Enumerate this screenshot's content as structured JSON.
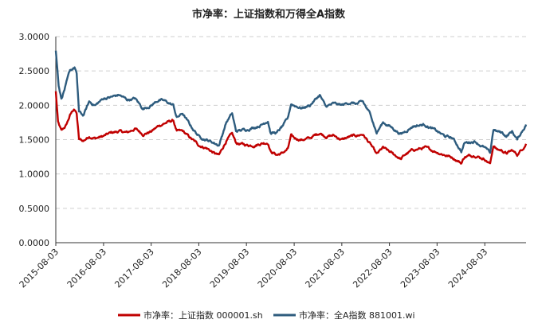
{
  "chart_data": {
    "type": "line",
    "title": "市净率：上证指数和万得全A指数",
    "xlabel": "",
    "ylabel": "",
    "ylim": [
      0,
      3
    ],
    "yticks": [
      "0.0000",
      "0.5000",
      "1.0000",
      "1.5000",
      "2.0000",
      "2.5000",
      "3.0000"
    ],
    "xticks": [
      "2015-08-03",
      "2016-08-03",
      "2017-08-03",
      "2018-08-03",
      "2019-08-03",
      "2020-08-03",
      "2021-08-03",
      "2022-08-03",
      "2023-08-03",
      "2024-08-03"
    ],
    "xlim": [
      "2015-08-03",
      "2025-06-15"
    ],
    "grid": "horizontal-dashed",
    "legend_position": "bottom",
    "series": [
      {
        "name": "市净率：上证指数 000001.sh",
        "color": "#c00000",
        "points": [
          [
            "2015-08-03",
            2.2
          ],
          [
            "2015-08-20",
            1.75
          ],
          [
            "2015-09-15",
            1.62
          ],
          [
            "2015-10-20",
            1.7
          ],
          [
            "2015-11-20",
            1.85
          ],
          [
            "2015-12-20",
            1.95
          ],
          [
            "2016-01-10",
            1.88
          ],
          [
            "2016-01-28",
            1.5
          ],
          [
            "2016-03-01",
            1.48
          ],
          [
            "2016-04-15",
            1.55
          ],
          [
            "2016-06-01",
            1.52
          ],
          [
            "2016-08-03",
            1.55
          ],
          [
            "2016-10-01",
            1.6
          ],
          [
            "2016-12-01",
            1.62
          ],
          [
            "2017-02-01",
            1.6
          ],
          [
            "2017-04-01",
            1.66
          ],
          [
            "2017-06-01",
            1.58
          ],
          [
            "2017-08-03",
            1.62
          ],
          [
            "2017-10-01",
            1.7
          ],
          [
            "2017-11-15",
            1.74
          ],
          [
            "2018-01-20",
            1.78
          ],
          [
            "2018-02-15",
            1.62
          ],
          [
            "2018-04-01",
            1.62
          ],
          [
            "2018-06-01",
            1.52
          ],
          [
            "2018-08-03",
            1.42
          ],
          [
            "2018-10-01",
            1.38
          ],
          [
            "2018-12-01",
            1.3
          ],
          [
            "2019-01-05",
            1.27
          ],
          [
            "2019-03-01",
            1.48
          ],
          [
            "2019-04-15",
            1.58
          ],
          [
            "2019-05-15",
            1.45
          ],
          [
            "2019-08-03",
            1.42
          ],
          [
            "2019-10-01",
            1.42
          ],
          [
            "2019-12-01",
            1.45
          ],
          [
            "2020-01-15",
            1.46
          ],
          [
            "2020-02-05",
            1.33
          ],
          [
            "2020-03-23",
            1.28
          ],
          [
            "2020-05-01",
            1.3
          ],
          [
            "2020-06-15",
            1.36
          ],
          [
            "2020-07-10",
            1.55
          ],
          [
            "2020-08-03",
            1.52
          ],
          [
            "2020-10-01",
            1.5
          ],
          [
            "2020-12-01",
            1.52
          ],
          [
            "2021-02-15",
            1.6
          ],
          [
            "2021-04-01",
            1.55
          ],
          [
            "2021-06-01",
            1.56
          ],
          [
            "2021-08-03",
            1.5
          ],
          [
            "2021-10-01",
            1.54
          ],
          [
            "2021-12-01",
            1.56
          ],
          [
            "2022-01-10",
            1.58
          ],
          [
            "2022-03-15",
            1.42
          ],
          [
            "2022-04-27",
            1.28
          ],
          [
            "2022-06-15",
            1.38
          ],
          [
            "2022-08-03",
            1.32
          ],
          [
            "2022-10-31",
            1.22
          ],
          [
            "2022-12-01",
            1.28
          ],
          [
            "2023-02-01",
            1.35
          ],
          [
            "2023-05-01",
            1.38
          ],
          [
            "2023-08-03",
            1.32
          ],
          [
            "2023-10-01",
            1.28
          ],
          [
            "2023-12-01",
            1.24
          ],
          [
            "2024-01-20",
            1.18
          ],
          [
            "2024-02-05",
            1.16
          ],
          [
            "2024-03-01",
            1.25
          ],
          [
            "2024-05-20",
            1.28
          ],
          [
            "2024-07-01",
            1.24
          ],
          [
            "2024-08-03",
            1.22
          ],
          [
            "2024-09-13",
            1.15
          ],
          [
            "2024-10-08",
            1.42
          ],
          [
            "2024-11-01",
            1.36
          ],
          [
            "2024-12-15",
            1.34
          ],
          [
            "2025-01-15",
            1.3
          ],
          [
            "2025-03-01",
            1.34
          ],
          [
            "2025-04-08",
            1.28
          ],
          [
            "2025-05-15",
            1.36
          ],
          [
            "2025-06-15",
            1.44
          ]
        ]
      },
      {
        "name": "市净率：全A指数 881001.wi",
        "color": "#2e5c7e",
        "points": [
          [
            "2015-08-03",
            2.8
          ],
          [
            "2015-08-25",
            2.3
          ],
          [
            "2015-09-15",
            2.1
          ],
          [
            "2015-10-20",
            2.3
          ],
          [
            "2015-11-20",
            2.5
          ],
          [
            "2015-12-25",
            2.55
          ],
          [
            "2016-01-10",
            2.45
          ],
          [
            "2016-01-28",
            1.9
          ],
          [
            "2016-03-01",
            1.85
          ],
          [
            "2016-04-15",
            2.05
          ],
          [
            "2016-06-01",
            2.0
          ],
          [
            "2016-08-03",
            2.1
          ],
          [
            "2016-10-01",
            2.12
          ],
          [
            "2016-12-01",
            2.15
          ],
          [
            "2017-02-01",
            2.08
          ],
          [
            "2017-04-01",
            2.1
          ],
          [
            "2017-06-01",
            1.95
          ],
          [
            "2017-08-03",
            2.0
          ],
          [
            "2017-10-01",
            2.08
          ],
          [
            "2017-11-15",
            2.06
          ],
          [
            "2018-01-20",
            2.0
          ],
          [
            "2018-02-15",
            1.82
          ],
          [
            "2018-04-01",
            1.88
          ],
          [
            "2018-06-01",
            1.7
          ],
          [
            "2018-08-03",
            1.55
          ],
          [
            "2018-10-01",
            1.5
          ],
          [
            "2018-12-01",
            1.45
          ],
          [
            "2019-01-05",
            1.42
          ],
          [
            "2019-03-01",
            1.75
          ],
          [
            "2019-04-15",
            1.88
          ],
          [
            "2019-05-15",
            1.62
          ],
          [
            "2019-08-03",
            1.65
          ],
          [
            "2019-10-01",
            1.68
          ],
          [
            "2019-12-01",
            1.72
          ],
          [
            "2020-01-15",
            1.78
          ],
          [
            "2020-02-05",
            1.6
          ],
          [
            "2020-03-23",
            1.6
          ],
          [
            "2020-05-01",
            1.68
          ],
          [
            "2020-06-15",
            1.8
          ],
          [
            "2020-07-10",
            2.02
          ],
          [
            "2020-08-03",
            2.0
          ],
          [
            "2020-10-01",
            1.96
          ],
          [
            "2020-12-01",
            2.0
          ],
          [
            "2021-02-15",
            2.15
          ],
          [
            "2021-04-01",
            1.98
          ],
          [
            "2021-06-01",
            2.02
          ],
          [
            "2021-08-03",
            2.0
          ],
          [
            "2021-10-01",
            2.04
          ],
          [
            "2021-12-01",
            2.02
          ],
          [
            "2022-01-10",
            2.05
          ],
          [
            "2022-03-15",
            1.85
          ],
          [
            "2022-04-27",
            1.6
          ],
          [
            "2022-06-15",
            1.75
          ],
          [
            "2022-08-03",
            1.7
          ],
          [
            "2022-10-31",
            1.58
          ],
          [
            "2022-12-01",
            1.62
          ],
          [
            "2023-02-01",
            1.7
          ],
          [
            "2023-05-01",
            1.72
          ],
          [
            "2023-08-03",
            1.62
          ],
          [
            "2023-10-01",
            1.55
          ],
          [
            "2023-12-01",
            1.52
          ],
          [
            "2024-01-20",
            1.38
          ],
          [
            "2024-02-05",
            1.33
          ],
          [
            "2024-03-01",
            1.45
          ],
          [
            "2024-05-20",
            1.48
          ],
          [
            "2024-07-01",
            1.42
          ],
          [
            "2024-08-03",
            1.38
          ],
          [
            "2024-09-13",
            1.3
          ],
          [
            "2024-10-08",
            1.65
          ],
          [
            "2024-11-01",
            1.62
          ],
          [
            "2024-12-15",
            1.6
          ],
          [
            "2025-01-15",
            1.55
          ],
          [
            "2025-03-01",
            1.62
          ],
          [
            "2025-04-08",
            1.5
          ],
          [
            "2025-05-15",
            1.62
          ],
          [
            "2025-06-15",
            1.72
          ]
        ]
      }
    ]
  }
}
